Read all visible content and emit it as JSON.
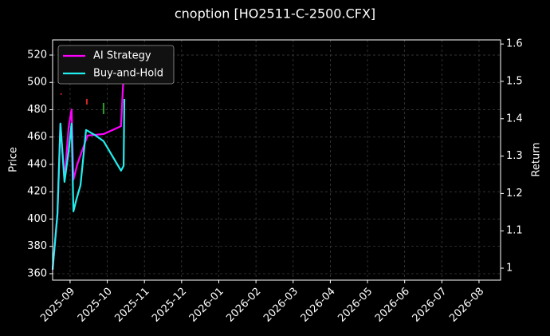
{
  "chart_data": {
    "type": "line",
    "title": "cnoption [HO2511-C-2500.CFX]",
    "ylabel": "Price",
    "y2label": "Return",
    "xlim": [
      -0.47,
      11.58
    ],
    "xticks": [
      {
        "value": 0,
        "label": "2025-09"
      },
      {
        "value": 1,
        "label": "2025-10"
      },
      {
        "value": 2,
        "label": "2025-11"
      },
      {
        "value": 3,
        "label": "2025-12"
      },
      {
        "value": 4,
        "label": "2026-01"
      },
      {
        "value": 5,
        "label": "2026-02"
      },
      {
        "value": 6,
        "label": "2026-03"
      },
      {
        "value": 7,
        "label": "2026-04"
      },
      {
        "value": 8,
        "label": "2026-05"
      },
      {
        "value": 9,
        "label": "2026-06"
      },
      {
        "value": 10,
        "label": "2026-07"
      },
      {
        "value": 11,
        "label": "2026-08"
      }
    ],
    "ylim": [
      355.3,
      531.1
    ],
    "yticks": [
      360,
      380,
      400,
      420,
      440,
      460,
      480,
      500,
      520
    ],
    "y2lim": [
      0.968,
      1.611
    ],
    "y2ticks": [
      1.0,
      1.1,
      1.2,
      1.3,
      1.4,
      1.5,
      1.6
    ],
    "grid": true,
    "legend": "upper left",
    "candles": {
      "x": [
        -0.24,
        0.45,
        0.9
      ],
      "open": [
        492,
        487.9,
        476.8
      ],
      "close": [
        491,
        483.8,
        485
      ],
      "colors": [
        "#d62728",
        "#d62728",
        "#2ca02c"
      ]
    },
    "series": [
      {
        "name": "AI Strategy",
        "color": "#ff00ff",
        "axis": "y2",
        "x": [
          -0.47,
          -0.34,
          -0.26,
          -0.15,
          -0.04,
          0.04,
          0.09,
          0.2,
          0.47,
          0.9,
          1.37,
          1.44
        ],
        "values": [
          0.996,
          1.145,
          1.387,
          1.237,
          1.376,
          1.425,
          1.237,
          1.28,
          1.355,
          1.359,
          1.38,
          1.519
        ]
      },
      {
        "name": "Buy-and-Hold",
        "color": "#22eeee",
        "axis": "y2",
        "x": [
          -0.47,
          -0.34,
          -0.26,
          -0.15,
          -0.04,
          0.04,
          0.09,
          0.17,
          0.28,
          0.43,
          0.69,
          0.9,
          1.37,
          1.44,
          1.46
        ],
        "values": [
          0.996,
          1.145,
          1.387,
          1.231,
          1.312,
          1.387,
          1.152,
          1.184,
          1.222,
          1.37,
          1.355,
          1.34,
          1.261,
          1.274,
          1.453
        ]
      }
    ]
  }
}
